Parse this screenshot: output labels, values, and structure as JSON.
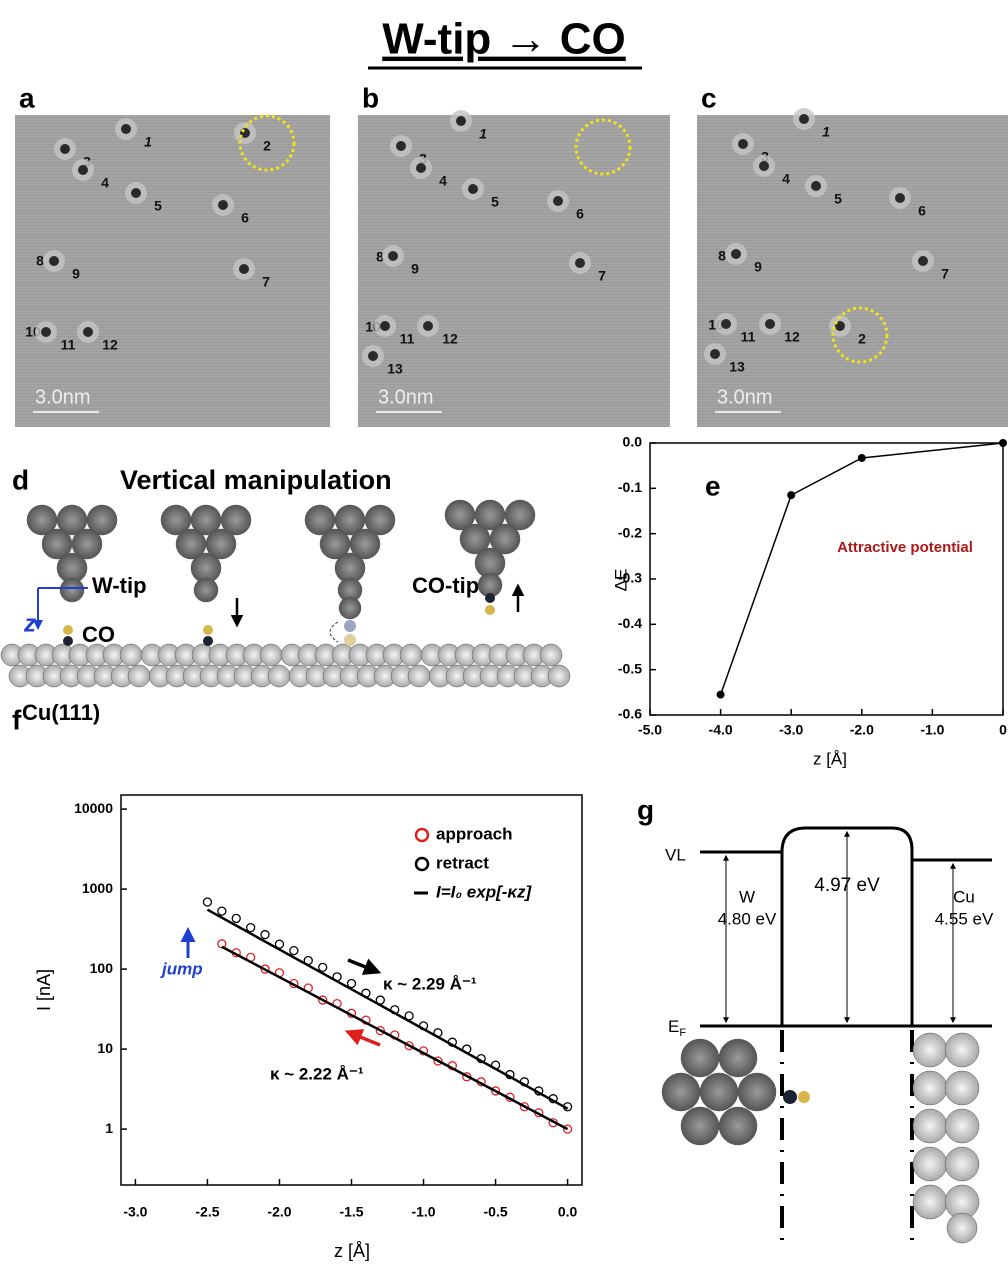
{
  "title": "W-tip → CO",
  "stm_panels": [
    {
      "label": "a",
      "markers": [
        "1",
        "2",
        "3",
        "4",
        "5",
        "6",
        "7",
        "8",
        "9",
        "10",
        "11",
        "12"
      ],
      "scale_bar": "3.0nm"
    },
    {
      "label": "b",
      "markers": [
        "1",
        "3",
        "4",
        "5",
        "6",
        "7",
        "8",
        "9",
        "10",
        "11",
        "12",
        "13"
      ],
      "scale_bar": "3.0nm"
    },
    {
      "label": "c",
      "markers": [
        "1",
        "3",
        "4",
        "5",
        "6",
        "7",
        "8",
        "9",
        "10",
        "11",
        "12",
        "13",
        "2"
      ],
      "scale_bar": "3.0nm"
    }
  ],
  "panel_d": {
    "label": "d",
    "title": "Vertical manipulation",
    "w_tip": "W-tip",
    "z": "z",
    "co": "CO",
    "surface": "Cu(111)",
    "co_tip": "CO-tip"
  },
  "chart_data": [
    {
      "type": "line",
      "label": "e",
      "annotation": "Attractive potential",
      "xlabel": "z [Å]",
      "ylabel": "ΔE",
      "x": [
        -4,
        -3,
        -2,
        0
      ],
      "values": [
        -0.555,
        -0.115,
        -0.033,
        0.0
      ],
      "color": "#000000",
      "xlim": [
        -5,
        0
      ],
      "ylim": [
        -0.6,
        0.0
      ],
      "xticks": [
        {
          "value": -5,
          "label": "-5.0"
        },
        {
          "value": -4,
          "label": "-4.0"
        },
        {
          "value": -3,
          "label": "-3.0"
        },
        {
          "value": -2,
          "label": "-2.0"
        },
        {
          "value": -1,
          "label": "-1.0"
        },
        0
      ],
      "yticks": [
        {
          "value": 0,
          "label": "0.0"
        },
        -0.1,
        -0.2,
        -0.3,
        -0.4,
        -0.5,
        -0.6
      ]
    },
    {
      "type": "scatter",
      "label": "f",
      "xlabel": "z [Å]",
      "ylabel": "I [nA]",
      "log_y": true,
      "legend": "upper right",
      "xlim": [
        -3.1,
        0.1
      ],
      "ylim": [
        0.2,
        15000
      ],
      "xticks": [
        {
          "value": -3,
          "label": "-3.0"
        },
        -2.5,
        {
          "value": -2,
          "label": "-2.0"
        },
        -1.5,
        {
          "value": -1,
          "label": "-1.0"
        },
        -0.5,
        {
          "value": 0,
          "label": "0.0"
        }
      ],
      "yticks": [
        1,
        10,
        100,
        1000,
        10000
      ],
      "series": [
        {
          "name": "approach",
          "color": "#e02020",
          "marker": "open-circle",
          "x": [
            -2.4,
            -2.3,
            -2.2,
            -2.1,
            -2.0,
            -1.9,
            -1.8,
            -1.7,
            -1.6,
            -1.5,
            -1.4,
            -1.3,
            -1.2,
            -1.1,
            -1.0,
            -0.9,
            -0.8,
            -0.7,
            -0.6,
            -0.5,
            -0.4,
            -0.3,
            -0.2,
            -0.1,
            0.0
          ],
          "values": [
            207,
            160,
            140,
            100,
            90,
            66,
            58,
            41,
            37,
            28,
            23,
            17,
            15,
            11,
            9.5,
            7.1,
            6.2,
            4.5,
            3.9,
            3.0,
            2.5,
            1.9,
            1.6,
            1.2,
            1.0
          ]
        },
        {
          "name": "retract",
          "color": "#000000",
          "marker": "open-circle",
          "x": [
            -2.5,
            -2.4,
            -2.3,
            -2.2,
            -2.1,
            -2.0,
            -1.9,
            -1.8,
            -1.7,
            -1.6,
            -1.5,
            -1.4,
            -1.3,
            -1.2,
            -1.1,
            -1.0,
            -0.9,
            -0.8,
            -0.7,
            -0.6,
            -0.5,
            -0.4,
            -0.3,
            -0.2,
            -0.1,
            0.0
          ],
          "values": [
            690,
            530,
            430,
            330,
            270,
            205,
            170,
            128,
            105,
            80,
            66,
            50,
            41,
            31,
            26,
            19.5,
            16,
            12.2,
            10,
            7.6,
            6.3,
            4.8,
            3.9,
            3.0,
            2.4,
            1.9
          ]
        },
        {
          "name": "I=I₀ exp[-κz]",
          "color": "#000000",
          "marker": "line",
          "x": [
            -2.5,
            0.0,
            null,
            -2.4,
            0.0
          ],
          "values": [
            553,
            1.8,
            null,
            190,
            1.0
          ]
        }
      ],
      "annotations": [
        "jump",
        "κ ~ 2.29 Å⁻¹",
        "κ ~ 2.22 Å⁻¹"
      ]
    }
  ],
  "panel_g": {
    "label": "g",
    "vl": "VL",
    "ef": {
      "main": "E",
      "sub": "F"
    },
    "w": "W",
    "w_value": "4.80 eV",
    "gap": "4.97 eV",
    "cu": "Cu",
    "cu_value": "4.55 eV"
  }
}
